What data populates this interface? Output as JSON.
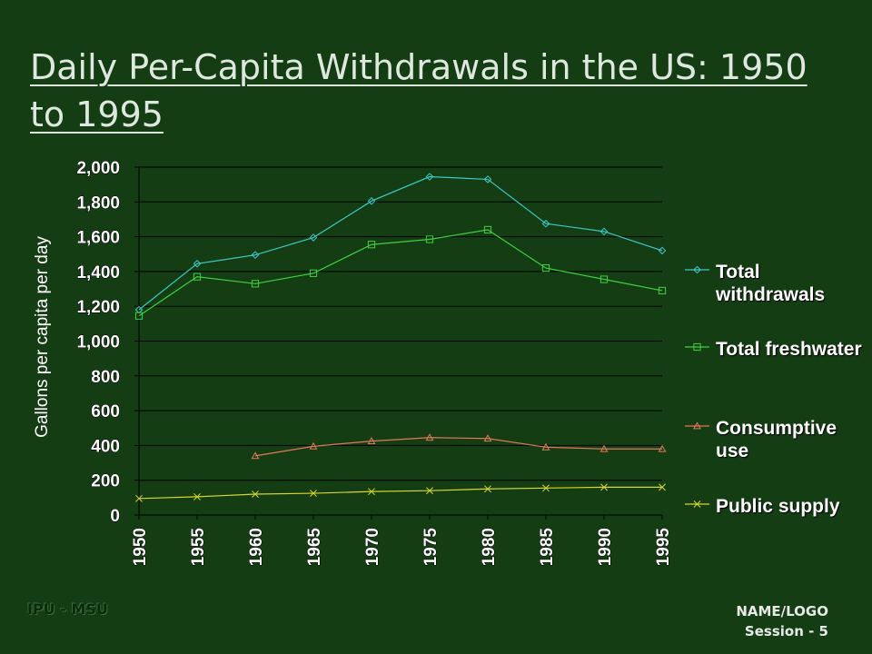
{
  "title": "Daily Per-Capita Withdrawals in the US: 1950 to 1995",
  "footer": {
    "left": "IPU - MSU",
    "right_line1": "NAME/LOGO",
    "right_line2": "Session - 5"
  },
  "colors": {
    "background": "#143d14",
    "grid": "#000000",
    "total_withdrawals": "#3ec9c9",
    "total_freshwater": "#3fd13f",
    "consumptive_use": "#e07a5a",
    "public_supply": "#d6d62e"
  },
  "chart_data": {
    "type": "line",
    "ylabel": "Gallons per capita per day",
    "xlabel": "",
    "x": [
      "1950",
      "1955",
      "1960",
      "1965",
      "1970",
      "1975",
      "1980",
      "1985",
      "1990",
      "1995"
    ],
    "ylim": [
      0,
      2000
    ],
    "yticks": [
      "0",
      "200",
      "400",
      "600",
      "800",
      "1,000",
      "1,200",
      "1,400",
      "1,600",
      "1,800",
      "2,000"
    ],
    "grid": "horizontal",
    "legend_position": "right",
    "series": [
      {
        "name": "Total withdrawals",
        "marker": "diamond",
        "values": [
          1180,
          1445,
          1495,
          1595,
          1805,
          1945,
          1930,
          1675,
          1630,
          1520
        ]
      },
      {
        "name": "Total freshwater",
        "marker": "square",
        "values": [
          1145,
          1370,
          1330,
          1390,
          1555,
          1585,
          1640,
          1420,
          1355,
          1290
        ]
      },
      {
        "name": "Consumptive use",
        "marker": "triangle",
        "values": [
          null,
          null,
          340,
          395,
          425,
          445,
          440,
          390,
          380,
          380
        ]
      },
      {
        "name": "Public supply",
        "marker": "x",
        "values": [
          95,
          105,
          120,
          125,
          135,
          140,
          150,
          155,
          160,
          160
        ]
      }
    ]
  }
}
